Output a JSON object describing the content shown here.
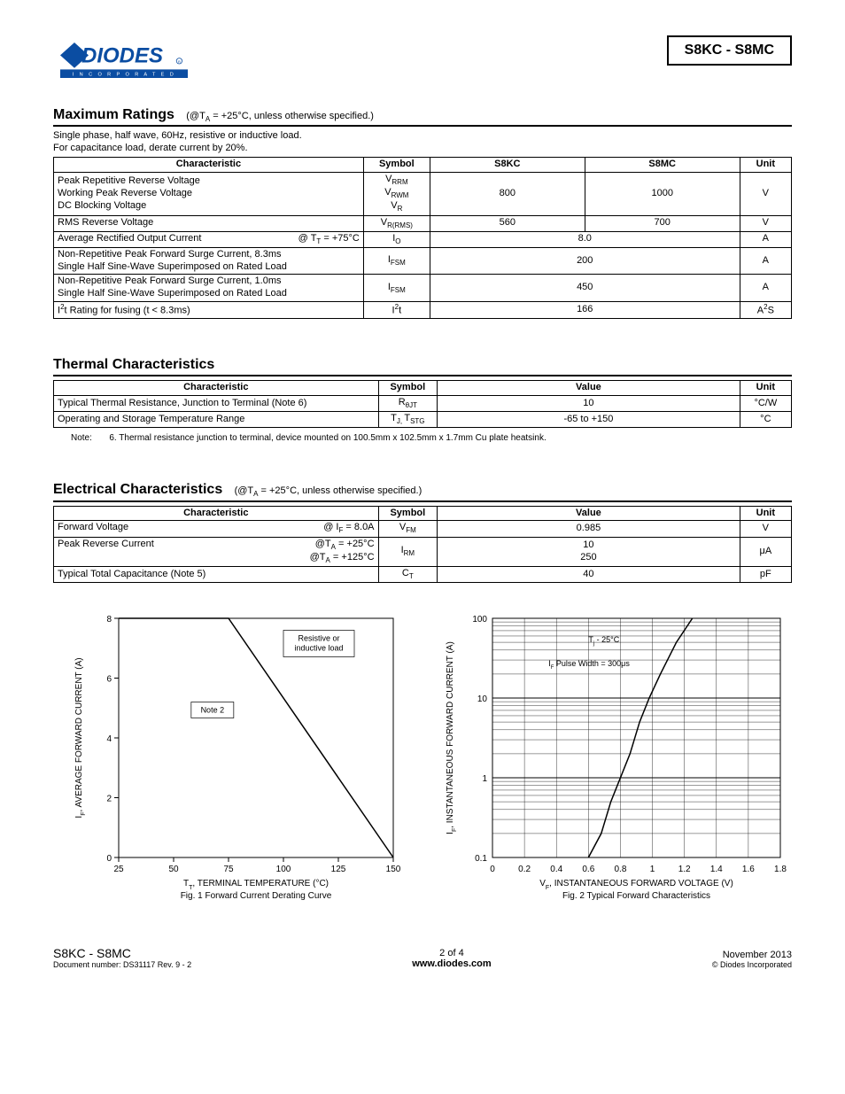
{
  "header": {
    "logo_fill": "#0b4da2",
    "logo_text": "DIODES",
    "logo_sub": "I N C O R P O R A T E D",
    "part_range": "S8KC - S8MC"
  },
  "mr": {
    "title": "Maximum Ratings",
    "cond_prefix": "(@T",
    "cond_sub": "A",
    "cond_rest": " = +25°C, unless otherwise specified.)",
    "sub1": "Single phase, half wave, 60Hz, resistive or inductive load.",
    "sub2": "For capacitance load, derate current by 20%.",
    "col_char": "Characteristic",
    "col_sym": "Symbol",
    "col_s8kc": "S8KC",
    "col_s8mc": "S8MC",
    "col_unit": "Unit",
    "r1_char_l1": "Peak Repetitive Reverse Voltage",
    "r1_char_l2": "Working Peak Reverse Voltage",
    "r1_char_l3": "DC Blocking  Voltage",
    "r1_sym1_b": "V",
    "r1_sym1_s": "RRM",
    "r1_sym2_b": "V",
    "r1_sym2_s": "RWM",
    "r1_sym3_b": "V",
    "r1_sym3_s": "R",
    "r1_v1": "800",
    "r1_v2": "1000",
    "r1_unit": "V",
    "r2_char": "RMS Reverse Voltage",
    "r2_sym_b": "V",
    "r2_sym_s": "R(RMS)",
    "r2_v1": "560",
    "r2_v2": "700",
    "r2_unit": "V",
    "r3_char_l": "Average Rectified Output Current",
    "r3_char_r_pre": "@ T",
    "r3_char_r_sub": "T",
    "r3_char_r_post": " = +75°C",
    "r3_sym_b": "I",
    "r3_sym_s": "O",
    "r3_v": "8.0",
    "r3_unit": "A",
    "r4_char_l1": "Non-Repetitive Peak Forward Surge Current, 8.3ms",
    "r4_char_l2": "Single Half Sine-Wave Superimposed on Rated Load",
    "r4_sym_b": "I",
    "r4_sym_s": "FSM",
    "r4_v": "200",
    "r4_unit": "A",
    "r5_char_l1": "Non-Repetitive Peak Forward Surge Current, 1.0ms",
    "r5_char_l2": "Single Half Sine-Wave Superimposed on Rated Load",
    "r5_sym_b": "I",
    "r5_sym_s": "FSM",
    "r5_v": "450",
    "r5_unit": "A",
    "r6_char_pre": "I",
    "r6_char_sup": "2",
    "r6_char_post": "t Rating for fusing (t < 8.3ms)",
    "r6_sym_pre": "I",
    "r6_sym_sup": "2",
    "r6_sym_post": "t",
    "r6_v": "166",
    "r6_unit_pre": "A",
    "r6_unit_sup": "2",
    "r6_unit_post": "S"
  },
  "tc": {
    "title": "Thermal Characteristics",
    "col_char": "Characteristic",
    "col_sym": "Symbol",
    "col_val": "Value",
    "col_unit": "Unit",
    "r1_char": "Typical Thermal Resistance, Junction to Terminal (Note 6)",
    "r1_sym_b": "R",
    "r1_sym_s": "θJT",
    "r1_v": "10",
    "r1_unit": "°C/W",
    "r2_char": "Operating and Storage Temperature Range",
    "r2_sym_b1": "T",
    "r2_sym_s1": "J, ",
    "r2_sym_b2": "T",
    "r2_sym_s2": "STG",
    "r2_v": "-65 to +150",
    "r2_unit": "°C",
    "note": "Note:       6. Thermal resistance junction to terminal, device mounted on 100.5mm x 102.5mm x 1.7mm Cu plate heatsink."
  },
  "ec": {
    "title": "Electrical Characteristics",
    "cond_prefix": "(@T",
    "cond_sub": "A",
    "cond_rest": " = +25°C, unless otherwise specified.)",
    "col_char": "Characteristic",
    "col_sym": "Symbol",
    "col_val": "Value",
    "col_unit": "Unit",
    "r1_char_l": "Forward Voltage",
    "r1_char_r_pre": "@ I",
    "r1_char_r_sub": "F",
    "r1_char_r_post": " = 8.0A",
    "r1_sym_b": "V",
    "r1_sym_s": "FM",
    "r1_v": "0.985",
    "r1_unit": "V",
    "r2_char_l": "Peak Reverse Current",
    "r2_char_r1_pre": "@T",
    "r2_char_r1_sub": "A",
    "r2_char_r1_post": " =  +25°C",
    "r2_char_r2_pre": "@T",
    "r2_char_r2_sub": "A",
    "r2_char_r2_post": " = +125°C",
    "r2_sym_b": "I",
    "r2_sym_s": "RM",
    "r2_v1": "10",
    "r2_v2": "250",
    "r2_unit": "μA",
    "r3_char": "Typical Total Capacitance (Note 5)",
    "r3_sym_b": "C",
    "r3_sym_s": "T",
    "r3_v": "40",
    "r3_unit": "pF"
  },
  "chart1": {
    "type": "line",
    "plot_bg": "#ffffff",
    "axis_color": "#000000",
    "line_color": "#000000",
    "line_width": 1.5,
    "xlim": [
      25,
      150
    ],
    "ylim": [
      0,
      8
    ],
    "xticks": [
      25,
      50,
      75,
      100,
      125,
      150
    ],
    "yticks": [
      0,
      2,
      4,
      6,
      8
    ],
    "data": [
      [
        25,
        8
      ],
      [
        75,
        8
      ],
      [
        150,
        0
      ]
    ],
    "ylabel_pre": "I",
    "ylabel_sub": "F",
    "ylabel_post": ", AVERAGE FORWARD CURRENT (A)",
    "xlabel_pre": "T",
    "xlabel_sub": "T",
    "xlabel_post": ", TERMINAL TEMPERATURE (°C)",
    "caption": "Fig. 1  Forward Current Derating Curve",
    "ann1": "Resistive or\ninductive load",
    "ann2": "Note 2",
    "font_size": 10
  },
  "chart2": {
    "type": "line-logy",
    "plot_bg": "#ffffff",
    "axis_color": "#000000",
    "line_color": "#000000",
    "line_width": 1.5,
    "xlim": [
      0,
      1.8
    ],
    "ylim": [
      0.1,
      100
    ],
    "xticks": [
      0,
      0.2,
      0.4,
      0.6,
      0.8,
      1,
      1.2,
      1.4,
      1.6,
      1.8
    ],
    "xtick_labels": [
      "0",
      "0.2",
      "0.4",
      "0.6",
      "0.8",
      "1",
      "1.2",
      "1.4",
      "1.6",
      "1.8"
    ],
    "ytick_labels": [
      "0.1",
      "1",
      "10",
      "100"
    ],
    "data": [
      [
        0.6,
        0.1
      ],
      [
        0.68,
        0.2
      ],
      [
        0.74,
        0.5
      ],
      [
        0.8,
        1
      ],
      [
        0.86,
        2
      ],
      [
        0.92,
        5
      ],
      [
        0.98,
        10
      ],
      [
        1.05,
        20
      ],
      [
        1.15,
        50
      ],
      [
        1.25,
        100
      ]
    ],
    "ylabel_pre": "I",
    "ylabel_sub": "F",
    "ylabel_post": ", INSTANTANEOUS FORWARD CURRENT (A)",
    "xlabel_pre": "V",
    "xlabel_sub": "F",
    "xlabel_post": ", INSTANTANEOUS FORWARD VOLTAGE (V)",
    "caption": "Fig. 2  Typical Forward Characteristics",
    "ann1_pre": "T",
    "ann1_sub": "j",
    "ann1_post": " - 25°C",
    "ann2_pre": "I",
    "ann2_sub": "F",
    "ann2_post": " Pulse Width = 300μs",
    "font_size": 10
  },
  "footer": {
    "part": "S8KC - S8MC",
    "doc": "Document number: DS31117 Rev. 9 - 2",
    "page": "2 of 4",
    "url": "www.diodes.com",
    "date": "November 2013",
    "copy": "© Diodes Incorporated"
  }
}
